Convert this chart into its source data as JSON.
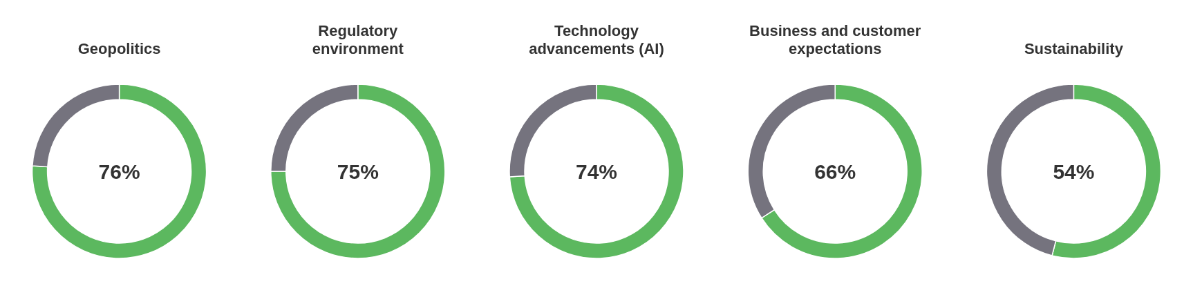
{
  "chart_data": [
    {
      "type": "donut",
      "title": "Geopolitics",
      "categories": [
        null,
        null
      ],
      "values": [
        76,
        24
      ],
      "colors": [
        "#5cb85f",
        "#75737e"
      ],
      "annotations": [
        "76%"
      ]
    },
    {
      "type": "donut",
      "title": "Regulatory environment",
      "categories": [
        null,
        null
      ],
      "values": [
        75,
        25
      ],
      "colors": [
        "#5cb85f",
        "#75737e"
      ],
      "annotations": [
        "75%"
      ]
    },
    {
      "type": "donut",
      "title": "Technology advancements (AI)",
      "categories": [
        null,
        null
      ],
      "values": [
        74,
        26
      ],
      "colors": [
        "#5cb85f",
        "#75737e"
      ],
      "annotations": [
        "74%"
      ]
    },
    {
      "type": "donut",
      "title": "Business and customer expectations",
      "categories": [
        null,
        null
      ],
      "values": [
        66,
        34
      ],
      "colors": [
        "#5cb85f",
        "#75737e"
      ],
      "annotations": [
        "66%"
      ]
    },
    {
      "type": "donut",
      "title": "Sustainability",
      "categories": [
        null,
        null
      ],
      "values": [
        54,
        46
      ],
      "colors": [
        "#5cb85f",
        "#75737e"
      ],
      "annotations": [
        "54%"
      ]
    }
  ]
}
